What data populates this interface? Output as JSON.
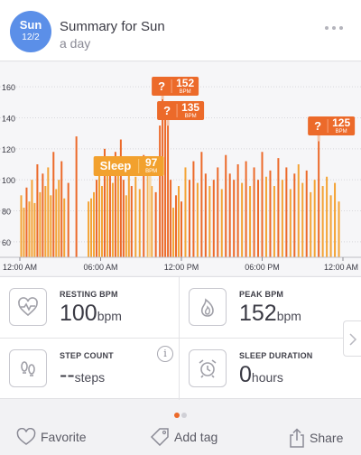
{
  "header": {
    "day_abbr": "Sun",
    "date": "12/2",
    "title": "Summary for Sun",
    "subtitle": "a day"
  },
  "colors": {
    "accent_blue": "#5b8fe8",
    "bar_orange": "#ec6a2a",
    "bar_amber": "#f4a335",
    "sleep_label": "#f2a12e",
    "grid": "#d8d8dc"
  },
  "chart_data": {
    "type": "bar",
    "title": "",
    "xlabel": "",
    "ylabel": "",
    "y_ticks": [
      60,
      80,
      100,
      120,
      140,
      160
    ],
    "ylim": [
      50,
      170
    ],
    "x_tick_labels": [
      "12:00 AM",
      "06:00 AM",
      "12:00 PM",
      "06:00 PM",
      "12:00 AM"
    ],
    "x_range_hours": [
      0,
      24
    ],
    "grid": true,
    "annotations": [
      {
        "kind": "question",
        "value": "152",
        "unit": "BPM",
        "hour": 10.6
      },
      {
        "kind": "question",
        "value": "135",
        "unit": "BPM",
        "hour": 11.0
      },
      {
        "kind": "question",
        "value": "125",
        "unit": "BPM",
        "hour": 22.2
      },
      {
        "kind": "sleep",
        "label": "Sleep",
        "value": "97",
        "unit": "BPM",
        "hour": 9.9
      }
    ],
    "question_mark": "?",
    "series": [
      {
        "values": [
          {
            "h": 0.1,
            "v": 90,
            "c": "a"
          },
          {
            "h": 0.3,
            "v": 82,
            "c": "a"
          },
          {
            "h": 0.5,
            "v": 95,
            "c": "o"
          },
          {
            "h": 0.7,
            "v": 86,
            "c": "a"
          },
          {
            "h": 0.9,
            "v": 100,
            "c": "a"
          },
          {
            "h": 1.1,
            "v": 85,
            "c": "a"
          },
          {
            "h": 1.3,
            "v": 110,
            "c": "o"
          },
          {
            "h": 1.5,
            "v": 92,
            "c": "a"
          },
          {
            "h": 1.7,
            "v": 104,
            "c": "o"
          },
          {
            "h": 1.9,
            "v": 96,
            "c": "a"
          },
          {
            "h": 2.1,
            "v": 108,
            "c": "a"
          },
          {
            "h": 2.3,
            "v": 90,
            "c": "a"
          },
          {
            "h": 2.5,
            "v": 118,
            "c": "o"
          },
          {
            "h": 2.7,
            "v": 94,
            "c": "a"
          },
          {
            "h": 2.9,
            "v": 100,
            "c": "a"
          },
          {
            "h": 3.1,
            "v": 112,
            "c": "o"
          },
          {
            "h": 3.3,
            "v": 88,
            "c": "a"
          },
          {
            "h": 3.6,
            "v": 98,
            "c": "o"
          },
          {
            "h": 4.2,
            "v": 128,
            "c": "o"
          },
          {
            "h": 5.1,
            "v": 86,
            "c": "a"
          },
          {
            "h": 5.3,
            "v": 88,
            "c": "a"
          },
          {
            "h": 5.5,
            "v": 92,
            "c": "a"
          },
          {
            "h": 5.7,
            "v": 100,
            "c": "o"
          },
          {
            "h": 5.9,
            "v": 108,
            "c": "a"
          },
          {
            "h": 6.1,
            "v": 96,
            "c": "a"
          },
          {
            "h": 6.3,
            "v": 120,
            "c": "o"
          },
          {
            "h": 6.5,
            "v": 112,
            "c": "a"
          },
          {
            "h": 6.7,
            "v": 106,
            "c": "o"
          },
          {
            "h": 6.9,
            "v": 98,
            "c": "a"
          },
          {
            "h": 7.1,
            "v": 118,
            "c": "o"
          },
          {
            "h": 7.3,
            "v": 104,
            "c": "a"
          },
          {
            "h": 7.5,
            "v": 126,
            "c": "o"
          },
          {
            "h": 7.7,
            "v": 100,
            "c": "o"
          },
          {
            "h": 7.9,
            "v": 90,
            "c": "a"
          },
          {
            "h": 8.1,
            "v": 110,
            "c": "a"
          },
          {
            "h": 8.3,
            "v": 96,
            "c": "o"
          },
          {
            "h": 8.6,
            "v": 102,
            "c": "a"
          },
          {
            "h": 8.9,
            "v": 94,
            "c": "a"
          },
          {
            "h": 9.2,
            "v": 116,
            "c": "o"
          },
          {
            "h": 9.5,
            "v": 104,
            "c": "a"
          },
          {
            "h": 9.8,
            "v": 96,
            "c": "a"
          },
          {
            "h": 10.1,
            "v": 92,
            "c": "o"
          },
          {
            "h": 10.4,
            "v": 135,
            "c": "o"
          },
          {
            "h": 10.6,
            "v": 152,
            "c": "o"
          },
          {
            "h": 10.8,
            "v": 140,
            "c": "o"
          },
          {
            "h": 11.0,
            "v": 135,
            "c": "o"
          },
          {
            "h": 11.2,
            "v": 100,
            "c": "o"
          },
          {
            "h": 11.4,
            "v": 82,
            "c": "a"
          },
          {
            "h": 11.6,
            "v": 90,
            "c": "o"
          },
          {
            "h": 11.8,
            "v": 96,
            "c": "a"
          },
          {
            "h": 12.0,
            "v": 86,
            "c": "o"
          },
          {
            "h": 12.3,
            "v": 108,
            "c": "a"
          },
          {
            "h": 12.6,
            "v": 100,
            "c": "o"
          },
          {
            "h": 12.9,
            "v": 112,
            "c": "o"
          },
          {
            "h": 13.2,
            "v": 98,
            "c": "a"
          },
          {
            "h": 13.5,
            "v": 118,
            "c": "o"
          },
          {
            "h": 13.8,
            "v": 104,
            "c": "o"
          },
          {
            "h": 14.1,
            "v": 96,
            "c": "a"
          },
          {
            "h": 14.4,
            "v": 100,
            "c": "o"
          },
          {
            "h": 14.7,
            "v": 108,
            "c": "o"
          },
          {
            "h": 15.0,
            "v": 94,
            "c": "a"
          },
          {
            "h": 15.3,
            "v": 116,
            "c": "o"
          },
          {
            "h": 15.6,
            "v": 104,
            "c": "o"
          },
          {
            "h": 15.9,
            "v": 100,
            "c": "o"
          },
          {
            "h": 16.2,
            "v": 110,
            "c": "o"
          },
          {
            "h": 16.5,
            "v": 98,
            "c": "a"
          },
          {
            "h": 16.8,
            "v": 112,
            "c": "o"
          },
          {
            "h": 17.1,
            "v": 96,
            "c": "a"
          },
          {
            "h": 17.4,
            "v": 108,
            "c": "o"
          },
          {
            "h": 17.7,
            "v": 100,
            "c": "o"
          },
          {
            "h": 18.0,
            "v": 118,
            "c": "o"
          },
          {
            "h": 18.3,
            "v": 102,
            "c": "a"
          },
          {
            "h": 18.6,
            "v": 106,
            "c": "o"
          },
          {
            "h": 18.9,
            "v": 96,
            "c": "a"
          },
          {
            "h": 19.2,
            "v": 114,
            "c": "o"
          },
          {
            "h": 19.5,
            "v": 100,
            "c": "a"
          },
          {
            "h": 19.8,
            "v": 108,
            "c": "o"
          },
          {
            "h": 20.1,
            "v": 94,
            "c": "a"
          },
          {
            "h": 20.4,
            "v": 104,
            "c": "o"
          },
          {
            "h": 20.7,
            "v": 110,
            "c": "a"
          },
          {
            "h": 21.0,
            "v": 98,
            "c": "a"
          },
          {
            "h": 21.3,
            "v": 106,
            "c": "o"
          },
          {
            "h": 21.6,
            "v": 92,
            "c": "a"
          },
          {
            "h": 21.9,
            "v": 100,
            "c": "a"
          },
          {
            "h": 22.2,
            "v": 125,
            "c": "o"
          },
          {
            "h": 22.5,
            "v": 96,
            "c": "a"
          },
          {
            "h": 22.8,
            "v": 102,
            "c": "a"
          },
          {
            "h": 23.1,
            "v": 90,
            "c": "a"
          },
          {
            "h": 23.4,
            "v": 98,
            "c": "a"
          },
          {
            "h": 23.7,
            "v": 86,
            "c": "a"
          }
        ]
      }
    ]
  },
  "stats": [
    {
      "label": "RESTING BPM",
      "value": "100",
      "unit": "bpm",
      "icon": "heart-pulse-icon"
    },
    {
      "label": "PEAK BPM",
      "value": "152",
      "unit": "bpm",
      "icon": "flame-icon"
    },
    {
      "label": "STEP COUNT",
      "value": "--",
      "unit": "steps",
      "icon": "footprints-icon",
      "info": "i"
    },
    {
      "label": "SLEEP DURATION",
      "value": "0",
      "unit": "hours",
      "icon": "alarm-clock-icon"
    }
  ],
  "pager": {
    "active_color": "#ec6a2a",
    "inactive_color": "#d0d0d6"
  },
  "bottom_bar": {
    "favorite": "Favorite",
    "add_tag": "Add tag",
    "share": "Share"
  }
}
